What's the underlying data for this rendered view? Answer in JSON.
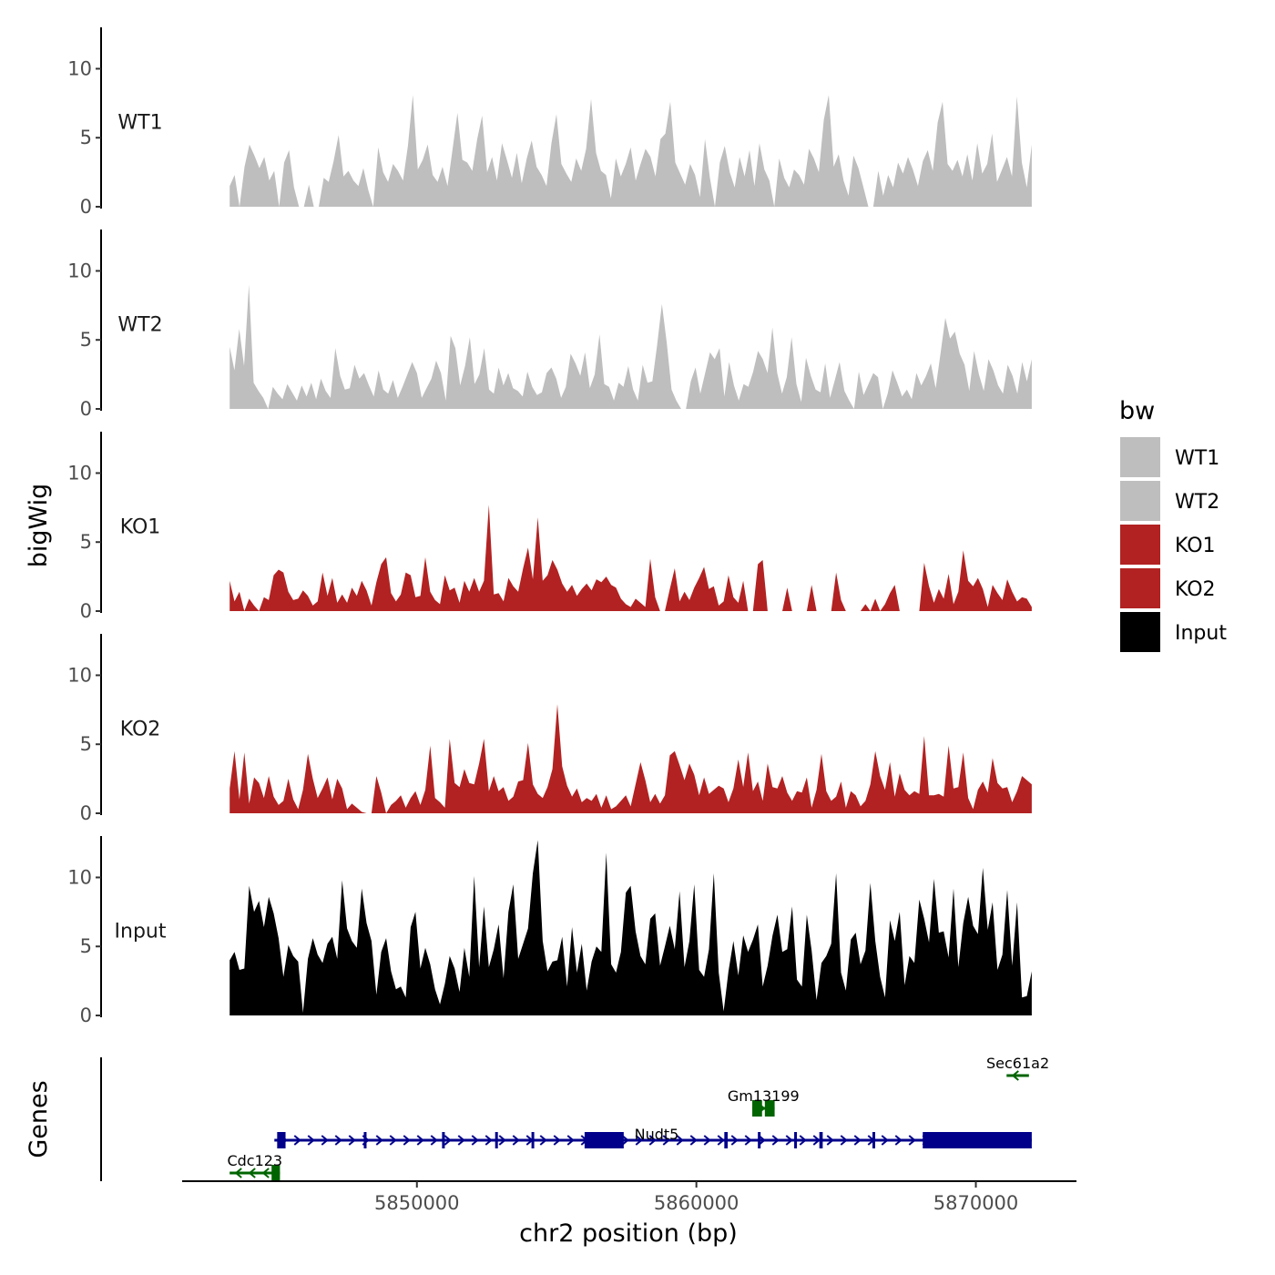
{
  "chart_data": {
    "type": "area",
    "chromosome": "chr2",
    "xlabel": "chr2 position (bp)",
    "ylabel": "bigWig",
    "genes_ylabel": "Genes",
    "xlim": [
      5841600,
      5873600
    ],
    "x_ticks": [
      "5850000",
      "5860000",
      "5870000"
    ],
    "x_tick_values": [
      5850000,
      5860000,
      5870000
    ],
    "ylim": [
      0,
      13
    ],
    "y_ticks": [
      "0",
      "5",
      "10"
    ],
    "y_tick_values": [
      0,
      5,
      10
    ],
    "coverage_start": 5843300,
    "coverage_end": 5872000,
    "legend": {
      "title": "bw",
      "entries": [
        {
          "name": "WT1",
          "color": "#bebebe"
        },
        {
          "name": "WT2",
          "color": "#bebebe"
        },
        {
          "name": "KO1",
          "color": "#b22222"
        },
        {
          "name": "KO2",
          "color": "#b22222"
        },
        {
          "name": "Input",
          "color": "#000000"
        }
      ]
    },
    "series": [
      {
        "name": "WT1",
        "color": "#bebebe",
        "values": [
          1.5,
          2.3,
          0,
          2.9,
          4.5,
          3.7,
          2.8,
          3.6,
          1.9,
          2.6,
          0,
          3.2,
          4.1,
          1.4,
          0,
          0,
          1.6,
          0,
          0,
          2.1,
          1.8,
          3.3,
          5.2,
          2.2,
          2.6,
          1.9,
          1.5,
          2.8,
          1.2,
          0,
          4.3,
          2.5,
          1.8,
          3.1,
          2.6,
          1.9,
          4.4,
          8.1,
          2.7,
          3.4,
          4.5,
          2.3,
          1.8,
          2.9,
          1.5,
          4.1,
          6.8,
          3.4,
          3.2,
          2.6,
          4.9,
          6.6,
          2.5,
          3.6,
          1.9,
          4.6,
          3.4,
          2.1,
          3.9,
          1.7,
          3.5,
          4.8,
          2.9,
          2.3,
          1.5,
          4.6,
          6.7,
          3.1,
          2.4,
          1.8,
          3.5,
          2.6,
          4.2,
          7.8,
          3.9,
          2.6,
          2.3,
          0.6,
          3.5,
          2.2,
          3.1,
          4.3,
          1.9,
          3.1,
          4.2,
          3.6,
          2.2,
          4.9,
          5.3,
          7.6,
          3.2,
          2.4,
          1.6,
          3.1,
          2.3,
          0.7,
          4.9,
          2.1,
          0,
          3.2,
          4.4,
          2.5,
          1.4,
          3.6,
          2.2,
          4.1,
          1.5,
          4.6,
          2.7,
          1.9,
          0,
          3.5,
          2.1,
          1.4,
          2.7,
          2.3,
          1.6,
          4.2,
          3.5,
          2.5,
          6.3,
          8.1,
          2.9,
          3.8,
          1.9,
          0.8,
          3.7,
          2.8,
          1.4,
          0,
          0,
          2.6,
          0.8,
          2.3,
          1.4,
          3.2,
          2.4,
          3.6,
          2.7,
          1.5,
          3.3,
          4.1,
          2.6,
          6.1,
          7.6,
          3.1,
          2.6,
          3.4,
          2.2,
          3.8,
          1.9,
          4.6,
          2.4,
          3.1,
          5.3,
          1.8,
          2.7,
          3.6,
          2.2,
          8.0,
          3.2,
          1.4,
          4.5
        ]
      },
      {
        "name": "WT2",
        "color": "#bebebe",
        "values": [
          4.5,
          2.8,
          5.8,
          3.1,
          9.0,
          1.9,
          1.3,
          0.8,
          0,
          1.6,
          1.1,
          0.7,
          1.8,
          1.2,
          0.6,
          1.7,
          0.9,
          1.9,
          0.7,
          2.2,
          1.3,
          0.8,
          4.4,
          2.4,
          1.4,
          1.5,
          3.2,
          2.2,
          2.6,
          1.7,
          0.9,
          2.8,
          1.4,
          1.1,
          2.1,
          0.8,
          1.6,
          2.5,
          3.4,
          2.6,
          0.8,
          1.5,
          2.2,
          3.5,
          2.6,
          0.6,
          5.3,
          4.4,
          1.7,
          3.1,
          5.2,
          1.8,
          2.5,
          4.4,
          1.4,
          1.1,
          3.0,
          1.7,
          2.6,
          1.5,
          1.3,
          0.9,
          2.7,
          1.6,
          1.0,
          1.2,
          2.6,
          3.0,
          2.2,
          0.8,
          1.6,
          4.0,
          3.3,
          2.4,
          4.1,
          1.5,
          2.5,
          5.4,
          1.8,
          1.6,
          0.6,
          1.9,
          1.6,
          3.1,
          1.4,
          0.6,
          3.2,
          1.9,
          2.0,
          4.6,
          7.6,
          4.8,
          1.4,
          0.6,
          0,
          0,
          2.0,
          3.0,
          1.1,
          2.6,
          4.1,
          3.6,
          4.4,
          0.9,
          3.4,
          1.7,
          0.6,
          1.8,
          1.6,
          2.7,
          4.2,
          3.6,
          2.6,
          5.9,
          2.6,
          1.1,
          2.3,
          5.2,
          1.8,
          0.5,
          3.7,
          2.4,
          1.4,
          1.2,
          3.3,
          0.8,
          2.1,
          3.4,
          1.3,
          0.6,
          0,
          2.7,
          1.0,
          1.8,
          2.6,
          2.3,
          0,
          1.1,
          2.8,
          1.9,
          0.9,
          1.4,
          0.7,
          2.6,
          1.7,
          2.4,
          3.3,
          1.5,
          4.0,
          6.6,
          5.1,
          5.6,
          4.0,
          3.2,
          1.3,
          4.2,
          2.5,
          1.3,
          3.6,
          2.8,
          1.7,
          1.1,
          3.2,
          2.4,
          1.1,
          3.4,
          2.0,
          3.6
        ]
      },
      {
        "name": "KO1",
        "color": "#b22222",
        "values": [
          2.2,
          0.7,
          1.4,
          0,
          0.9,
          0.4,
          0,
          1.0,
          0.8,
          2.6,
          3.0,
          2.8,
          1.4,
          0.8,
          0.9,
          1.5,
          1.1,
          0.4,
          0.7,
          2.8,
          1.1,
          2.4,
          0.6,
          1.2,
          0.6,
          1.7,
          1.1,
          2.2,
          1.5,
          0.4,
          2.1,
          3.4,
          3.9,
          1.3,
          0.7,
          1.2,
          2.8,
          2.6,
          1.0,
          1.1,
          3.9,
          1.4,
          0.8,
          0.5,
          2.6,
          1.5,
          1.7,
          0.6,
          2.2,
          1.4,
          2.4,
          1.4,
          2.2,
          7.7,
          1.2,
          1.3,
          0.7,
          2.4,
          1.8,
          1.4,
          3.1,
          4.6,
          2.3,
          6.8,
          2.2,
          2.6,
          3.7,
          3.0,
          2.0,
          1.4,
          1.9,
          1.1,
          1.6,
          2.0,
          1.5,
          2.3,
          2.1,
          2.5,
          1.9,
          1.7,
          0.9,
          0.5,
          0.3,
          0.9,
          0.6,
          0.3,
          3.8,
          1.0,
          0,
          0,
          1.6,
          3.1,
          0.7,
          1.4,
          0.8,
          1.7,
          2.4,
          3.2,
          1.6,
          1.8,
          0.4,
          0.7,
          2.6,
          1.0,
          0.6,
          2.2,
          0,
          0,
          3.4,
          3.7,
          0,
          0,
          0,
          0,
          1.7,
          0,
          0,
          0,
          0,
          1.9,
          0,
          0,
          0,
          0,
          2.8,
          0.8,
          0,
          0,
          0,
          0,
          0.5,
          0,
          0.9,
          0,
          0.5,
          1.3,
          1.9,
          0,
          0,
          0,
          0,
          0,
          3.5,
          1.8,
          0.6,
          1.6,
          0.9,
          2.7,
          0.5,
          1.4,
          4.4,
          2.2,
          1.8,
          2.4,
          1.6,
          0.3,
          1.9,
          1.3,
          0.8,
          2.3,
          1.4,
          0.7,
          1.0,
          0.9,
          0.3
        ]
      },
      {
        "name": "KO2",
        "color": "#b22222",
        "values": [
          1.8,
          4.5,
          1.0,
          4.4,
          0.7,
          2.6,
          2.2,
          1.1,
          2.7,
          1.2,
          0.6,
          0.9,
          2.5,
          1.0,
          0.3,
          1.7,
          4.3,
          2.5,
          1.1,
          1.8,
          2.6,
          1.0,
          2.5,
          1.8,
          0.3,
          0.7,
          0.4,
          0.1,
          0,
          0,
          2.7,
          1.5,
          0,
          0.6,
          0.9,
          1.3,
          0.4,
          1.1,
          1.6,
          0.6,
          1.7,
          4.9,
          1.1,
          0.8,
          0.4,
          5.4,
          2.2,
          1.9,
          3.2,
          2.2,
          2.1,
          3.6,
          5.4,
          1.6,
          2.7,
          1.6,
          1.9,
          0.9,
          1.2,
          2.3,
          2.4,
          5.1,
          2.1,
          1.4,
          1.1,
          1.9,
          3.2,
          7.9,
          3.4,
          2.0,
          1.2,
          1.8,
          0.8,
          1.1,
          0.9,
          1.4,
          0.4,
          1.3,
          0.3,
          0.5,
          0.9,
          1.3,
          0.5,
          2.1,
          3.7,
          2.4,
          0.8,
          1.4,
          0.7,
          1.3,
          4.2,
          4.5,
          3.5,
          2.4,
          3.6,
          2.8,
          1.3,
          2.6,
          1.4,
          1.7,
          2.0,
          1.8,
          0.8,
          1.8,
          3.9,
          1.9,
          4.4,
          1.6,
          2.3,
          0.9,
          3.6,
          1.9,
          1.8,
          2.7,
          1.5,
          0.9,
          1.6,
          1.5,
          2.6,
          0.4,
          1.7,
          4.3,
          1.6,
          0.9,
          1.2,
          2.3,
          0.4,
          1.6,
          1.3,
          0.5,
          0.9,
          2.1,
          4.5,
          2.7,
          1.7,
          3.7,
          1.2,
          2.9,
          1.7,
          1.3,
          1.6,
          1.4,
          5.6,
          1.3,
          1.3,
          1.4,
          1.2,
          4.9,
          1.8,
          1.9,
          4.4,
          1.1,
          0.3,
          1.7,
          2.3,
          1.5,
          4.0,
          2.2,
          1.8,
          1.9,
          0.8,
          1.6,
          2.7,
          2.4,
          2.1
        ]
      },
      {
        "name": "Input",
        "color": "#000000",
        "values": [
          4.0,
          4.6,
          3.3,
          3.4,
          9.4,
          7.5,
          8.3,
          6.4,
          8.6,
          7.4,
          5.6,
          2.8,
          5.1,
          4.3,
          3.9,
          0.2,
          4.1,
          5.6,
          4.4,
          3.8,
          5.2,
          5.7,
          4.1,
          9.8,
          6.3,
          5.4,
          4.9,
          9.2,
          6.7,
          5.4,
          1.5,
          4.6,
          5.6,
          3.2,
          1.9,
          2.1,
          1.3,
          6.4,
          7.5,
          3.4,
          4.9,
          3.7,
          1.9,
          0.8,
          2.3,
          4.3,
          3.4,
          1.7,
          4.9,
          2.8,
          10.1,
          3.5,
          7.9,
          3.5,
          4.8,
          6.6,
          2.7,
          7.5,
          9.5,
          4.1,
          5.2,
          6.3,
          10.3,
          12.7,
          5.4,
          3.2,
          3.9,
          4.0,
          5.7,
          2.1,
          6.4,
          3.1,
          5.2,
          1.8,
          3.9,
          5.0,
          4.6,
          11.8,
          3.7,
          3.1,
          4.6,
          8.9,
          9.4,
          6.1,
          4.3,
          3.7,
          7.0,
          7.4,
          3.6,
          5.0,
          6.5,
          4.8,
          9.0,
          3.5,
          5.4,
          9.5,
          3.3,
          2.8,
          4.8,
          10.3,
          3.1,
          0.3,
          3.2,
          5.4,
          2.9,
          5.8,
          4.6,
          5.5,
          6.6,
          2.1,
          3.6,
          5.8,
          7.3,
          4.6,
          4.8,
          7.9,
          2.6,
          2.1,
          7.3,
          4.7,
          1.1,
          3.8,
          4.3,
          5.2,
          10.3,
          3.1,
          1.8,
          5.5,
          6.0,
          3.7,
          4.7,
          9.6,
          5.4,
          2.8,
          1.3,
          6.9,
          5.4,
          7.5,
          2.2,
          4.3,
          3.8,
          8.4,
          7.0,
          5.3,
          9.9,
          6.0,
          6.1,
          4.2,
          9.2,
          3.5,
          6.7,
          8.6,
          6.5,
          5.9,
          10.7,
          6.2,
          8.2,
          3.3,
          4.4,
          9.1,
          3.6,
          8.2,
          1.3,
          1.4,
          3.2
        ]
      }
    ],
    "genes": [
      {
        "name": "Cdc123",
        "start": 5843300,
        "end": 5845100,
        "strand": "-",
        "color": "#006400",
        "row": 0,
        "exons": [
          [
            5844800,
            5845100
          ]
        ]
      },
      {
        "name": "Nudt5",
        "start": 5844900,
        "end": 5872000,
        "strand": "+",
        "color": "#00008b",
        "row": 1,
        "exons": [
          [
            5845000,
            5845300
          ],
          [
            5848100,
            5848180
          ],
          [
            5850900,
            5850980
          ],
          [
            5852800,
            5852880
          ],
          [
            5854100,
            5854180
          ],
          [
            5856000,
            5857400
          ],
          [
            5861000,
            5861120
          ],
          [
            5862200,
            5862280
          ],
          [
            5863500,
            5863580
          ],
          [
            5864400,
            5864520
          ],
          [
            5866300,
            5866380
          ],
          [
            5868100,
            5872000
          ]
        ]
      },
      {
        "name": "Gm13199",
        "start": 5862000,
        "end": 5862800,
        "strand": "+",
        "color": "#006400",
        "row": 2,
        "exons": [
          [
            5862000,
            5862350
          ],
          [
            5862450,
            5862800
          ]
        ]
      },
      {
        "name": "Sec61a2",
        "start": 5871100,
        "end": 5871900,
        "strand": "-",
        "color": "#006400",
        "row": 3,
        "exons": []
      }
    ]
  }
}
